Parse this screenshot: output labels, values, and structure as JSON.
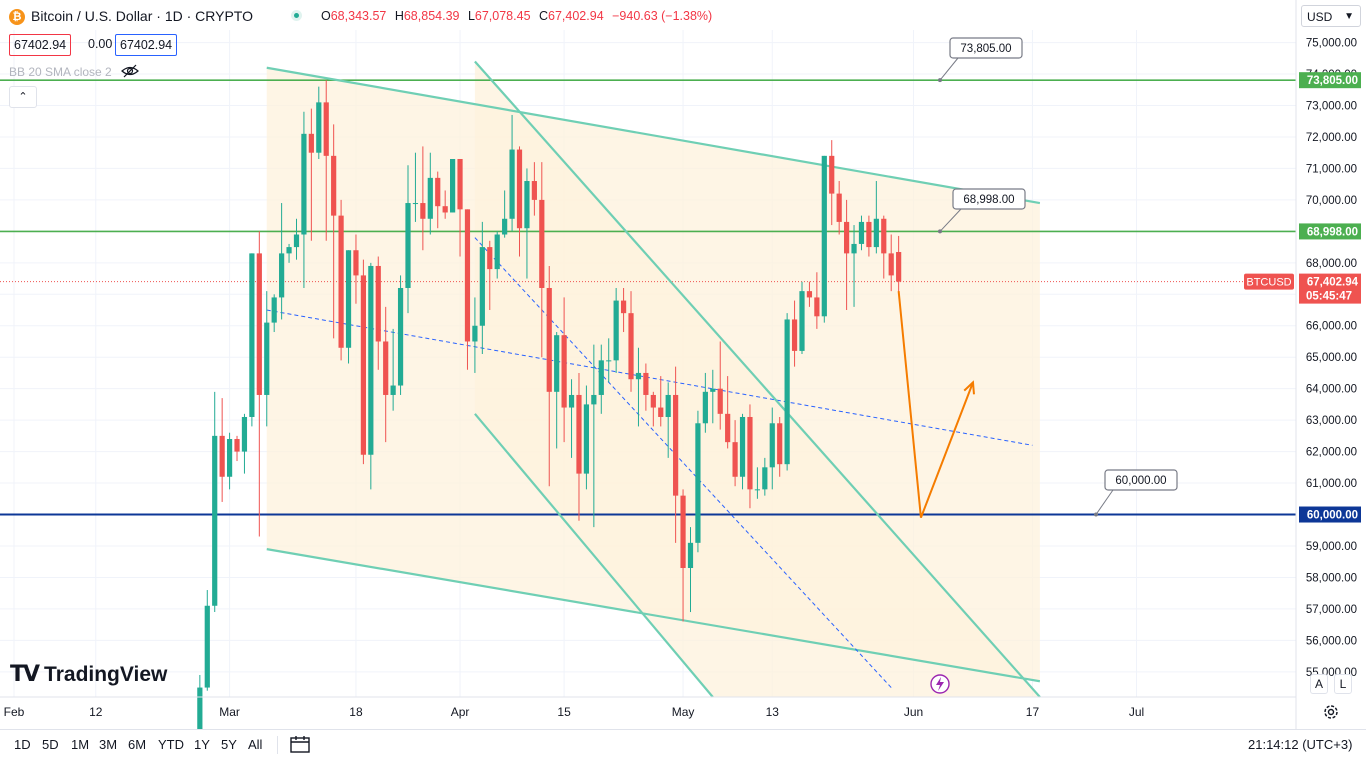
{
  "header": {
    "title": "Bitcoin / U.S. Dollar · 1D · CRYPTO",
    "logo_glyph": "₿",
    "ohlc": {
      "o_label": "O",
      "o_value": "68,343.57",
      "h_label": "H",
      "h_value": "68,854.39",
      "l_label": "L",
      "l_value": "67,078.45",
      "c_label": "C",
      "c_value": "67,402.94",
      "change": "−940.63 (−1.38%)"
    },
    "bid": "67402.94",
    "spread": "0.00",
    "ask": "67402.94",
    "indicator_label": "BB 20 SMA close 2",
    "collapse_glyph": "⌃",
    "currency": "USD"
  },
  "logo_text": "TradingView",
  "axis_buttons": {
    "auto": "A",
    "log": "L"
  },
  "range_buttons": [
    "1D",
    "5D",
    "1M",
    "3M",
    "6M",
    "YTD",
    "1Y",
    "5Y",
    "All"
  ],
  "clock": "21:14:12 (UTC+3)",
  "colors": {
    "up": "#22ab94",
    "down": "#ef5350",
    "channel": "#6fcfb4",
    "fill": "#fdf1dc",
    "hline_green": "#4caf50",
    "hline_blue": "#0d3797",
    "arrow": "#f57c00",
    "mid_line": "#2962ff",
    "marker": "#9c27b0"
  },
  "chart_data": {
    "type": "candlestick",
    "symbol": "BTCUSD",
    "ylim": [
      54200,
      75400
    ],
    "x_domain_days": [
      "2024-02-01",
      "2024-07-09"
    ],
    "y_ticks": [
      55000,
      56000,
      57000,
      58000,
      59000,
      60000,
      61000,
      62000,
      63000,
      64000,
      65000,
      66000,
      67000,
      68000,
      69000,
      70000,
      71000,
      72000,
      73000,
      74000,
      75000
    ],
    "y_tick_labels": [
      "55,000.00",
      "56,000.00",
      "57,000.00",
      "58,000.00",
      "59,000.00",
      "60,000.00",
      "61,000.00",
      "62,000.00",
      "63,000.00",
      "64,000.00",
      "65,000.00",
      "66,000.00",
      "67,000.00",
      "68,000.00",
      "69,000.00",
      "70,000.00",
      "71,000.00",
      "72,000.00",
      "73,000.00",
      "74,000.00",
      "75,000.00"
    ],
    "x_ticks": [
      {
        "date": "2024-02-01",
        "label": "Feb"
      },
      {
        "date": "2024-02-12",
        "label": "12"
      },
      {
        "date": "2024-03-01",
        "label": "Mar"
      },
      {
        "date": "2024-03-18",
        "label": "18"
      },
      {
        "date": "2024-04-01",
        "label": "Apr"
      },
      {
        "date": "2024-04-15",
        "label": "15"
      },
      {
        "date": "2024-05-01",
        "label": "May"
      },
      {
        "date": "2024-05-13",
        "label": "13"
      },
      {
        "date": "2024-06-01",
        "label": "Jun"
      },
      {
        "date": "2024-06-17",
        "label": "17"
      },
      {
        "date": "2024-07-01",
        "label": "Jul"
      }
    ],
    "candles": [
      {
        "date": "2024-02-26",
        "o": 51700,
        "h": 54900,
        "l": 50900,
        "c": 54500
      },
      {
        "date": "2024-02-27",
        "o": 54500,
        "h": 57600,
        "l": 54400,
        "c": 57100
      },
      {
        "date": "2024-02-28",
        "o": 57100,
        "h": 63900,
        "l": 56900,
        "c": 62500
      },
      {
        "date": "2024-02-29",
        "o": 62500,
        "h": 63700,
        "l": 60400,
        "c": 61200
      },
      {
        "date": "2024-03-01",
        "o": 61200,
        "h": 62600,
        "l": 60800,
        "c": 62400
      },
      {
        "date": "2024-03-02",
        "o": 62400,
        "h": 62500,
        "l": 61700,
        "c": 62000
      },
      {
        "date": "2024-03-03",
        "o": 62000,
        "h": 63200,
        "l": 61300,
        "c": 63100
      },
      {
        "date": "2024-03-04",
        "o": 63100,
        "h": 68300,
        "l": 62800,
        "c": 68300
      },
      {
        "date": "2024-03-05",
        "o": 68300,
        "h": 69000,
        "l": 59300,
        "c": 63800
      },
      {
        "date": "2024-03-06",
        "o": 63800,
        "h": 67100,
        "l": 62800,
        "c": 66100
      },
      {
        "date": "2024-03-07",
        "o": 66100,
        "h": 67000,
        "l": 65800,
        "c": 66900
      },
      {
        "date": "2024-03-08",
        "o": 66900,
        "h": 69900,
        "l": 66200,
        "c": 68300
      },
      {
        "date": "2024-03-09",
        "o": 68300,
        "h": 68600,
        "l": 68000,
        "c": 68500
      },
      {
        "date": "2024-03-10",
        "o": 68500,
        "h": 69400,
        "l": 68100,
        "c": 68900
      },
      {
        "date": "2024-03-11",
        "o": 68900,
        "h": 72800,
        "l": 67200,
        "c": 72100
      },
      {
        "date": "2024-03-12",
        "o": 72100,
        "h": 72900,
        "l": 68700,
        "c": 71500
      },
      {
        "date": "2024-03-13",
        "o": 71500,
        "h": 73600,
        "l": 71300,
        "c": 73100
      },
      {
        "date": "2024-03-14",
        "o": 73100,
        "h": 73800,
        "l": 68700,
        "c": 71400
      },
      {
        "date": "2024-03-15",
        "o": 71400,
        "h": 72400,
        "l": 65600,
        "c": 69500
      },
      {
        "date": "2024-03-16",
        "o": 69500,
        "h": 70000,
        "l": 64900,
        "c": 65300
      },
      {
        "date": "2024-03-17",
        "o": 65300,
        "h": 68400,
        "l": 64800,
        "c": 68400
      },
      {
        "date": "2024-03-18",
        "o": 68400,
        "h": 68900,
        "l": 66700,
        "c": 67600
      },
      {
        "date": "2024-03-19",
        "o": 67600,
        "h": 68100,
        "l": 61600,
        "c": 61900
      },
      {
        "date": "2024-03-20",
        "o": 61900,
        "h": 68000,
        "l": 60800,
        "c": 67900
      },
      {
        "date": "2024-03-21",
        "o": 67900,
        "h": 68200,
        "l": 64600,
        "c": 65500
      },
      {
        "date": "2024-03-22",
        "o": 65500,
        "h": 66600,
        "l": 62300,
        "c": 63800
      },
      {
        "date": "2024-03-23",
        "o": 63800,
        "h": 65900,
        "l": 63300,
        "c": 64100
      },
      {
        "date": "2024-03-24",
        "o": 64100,
        "h": 67600,
        "l": 63800,
        "c": 67200
      },
      {
        "date": "2024-03-25",
        "o": 67200,
        "h": 71100,
        "l": 66400,
        "c": 69900
      },
      {
        "date": "2024-03-26",
        "o": 69900,
        "h": 71500,
        "l": 69300,
        "c": 69900
      },
      {
        "date": "2024-03-27",
        "o": 69900,
        "h": 71700,
        "l": 68400,
        "c": 69400
      },
      {
        "date": "2024-03-28",
        "o": 69400,
        "h": 71500,
        "l": 68900,
        "c": 70700
      },
      {
        "date": "2024-03-29",
        "o": 70700,
        "h": 70900,
        "l": 69100,
        "c": 69800
      },
      {
        "date": "2024-03-30",
        "o": 69800,
        "h": 70300,
        "l": 69400,
        "c": 69600
      },
      {
        "date": "2024-03-31",
        "o": 69600,
        "h": 71300,
        "l": 69600,
        "c": 71300
      },
      {
        "date": "2024-04-01",
        "o": 71300,
        "h": 71300,
        "l": 68200,
        "c": 69700
      },
      {
        "date": "2024-04-02",
        "o": 69700,
        "h": 69700,
        "l": 64600,
        "c": 65500
      },
      {
        "date": "2024-04-03",
        "o": 65500,
        "h": 66900,
        "l": 64500,
        "c": 66000
      },
      {
        "date": "2024-04-04",
        "o": 66000,
        "h": 69300,
        "l": 65100,
        "c": 68500
      },
      {
        "date": "2024-04-05",
        "o": 68500,
        "h": 68700,
        "l": 66500,
        "c": 67800
      },
      {
        "date": "2024-04-06",
        "o": 67800,
        "h": 69000,
        "l": 67500,
        "c": 68900
      },
      {
        "date": "2024-04-07",
        "o": 68900,
        "h": 70300,
        "l": 68800,
        "c": 69400
      },
      {
        "date": "2024-04-08",
        "o": 69400,
        "h": 72700,
        "l": 69000,
        "c": 71600
      },
      {
        "date": "2024-04-09",
        "o": 71600,
        "h": 71700,
        "l": 68200,
        "c": 69100
      },
      {
        "date": "2024-04-10",
        "o": 69100,
        "h": 71000,
        "l": 67500,
        "c": 70600
      },
      {
        "date": "2024-04-11",
        "o": 70600,
        "h": 71200,
        "l": 69500,
        "c": 70000
      },
      {
        "date": "2024-04-12",
        "o": 70000,
        "h": 71200,
        "l": 65000,
        "c": 67200
      },
      {
        "date": "2024-04-13",
        "o": 67200,
        "h": 67900,
        "l": 60900,
        "c": 63900
      },
      {
        "date": "2024-04-14",
        "o": 63900,
        "h": 65800,
        "l": 62100,
        "c": 65700
      },
      {
        "date": "2024-04-15",
        "o": 65700,
        "h": 66900,
        "l": 62300,
        "c": 63400
      },
      {
        "date": "2024-04-16",
        "o": 63400,
        "h": 64300,
        "l": 61800,
        "c": 63800
      },
      {
        "date": "2024-04-17",
        "o": 63800,
        "h": 64500,
        "l": 59800,
        "c": 61300
      },
      {
        "date": "2024-04-18",
        "o": 61300,
        "h": 64100,
        "l": 60800,
        "c": 63500
      },
      {
        "date": "2024-04-19",
        "o": 63500,
        "h": 65400,
        "l": 59600,
        "c": 63800
      },
      {
        "date": "2024-04-20",
        "o": 63800,
        "h": 65400,
        "l": 63200,
        "c": 64900
      },
      {
        "date": "2024-04-21",
        "o": 64900,
        "h": 65600,
        "l": 64200,
        "c": 64900
      },
      {
        "date": "2024-04-22",
        "o": 64900,
        "h": 67200,
        "l": 64500,
        "c": 66800
      },
      {
        "date": "2024-04-23",
        "o": 66800,
        "h": 67200,
        "l": 65800,
        "c": 66400
      },
      {
        "date": "2024-04-24",
        "o": 66400,
        "h": 67100,
        "l": 63900,
        "c": 64300
      },
      {
        "date": "2024-04-25",
        "o": 64300,
        "h": 65300,
        "l": 62800,
        "c": 64500
      },
      {
        "date": "2024-04-26",
        "o": 64500,
        "h": 64800,
        "l": 63300,
        "c": 63800
      },
      {
        "date": "2024-04-27",
        "o": 63800,
        "h": 63900,
        "l": 62800,
        "c": 63400
      },
      {
        "date": "2024-04-28",
        "o": 63400,
        "h": 64400,
        "l": 62800,
        "c": 63100
      },
      {
        "date": "2024-04-29",
        "o": 63100,
        "h": 64200,
        "l": 61800,
        "c": 63800
      },
      {
        "date": "2024-04-30",
        "o": 63800,
        "h": 64700,
        "l": 59100,
        "c": 60600
      },
      {
        "date": "2024-05-01",
        "o": 60600,
        "h": 60800,
        "l": 56600,
        "c": 58300
      },
      {
        "date": "2024-05-02",
        "o": 58300,
        "h": 59600,
        "l": 56900,
        "c": 59100
      },
      {
        "date": "2024-05-03",
        "o": 59100,
        "h": 63300,
        "l": 58800,
        "c": 62900
      },
      {
        "date": "2024-05-04",
        "o": 62900,
        "h": 64500,
        "l": 62600,
        "c": 63900
      },
      {
        "date": "2024-05-05",
        "o": 63900,
        "h": 64600,
        "l": 62900,
        "c": 64000
      },
      {
        "date": "2024-05-06",
        "o": 64000,
        "h": 65500,
        "l": 62700,
        "c": 63200
      },
      {
        "date": "2024-05-07",
        "o": 63200,
        "h": 64400,
        "l": 62100,
        "c": 62300
      },
      {
        "date": "2024-05-08",
        "o": 62300,
        "h": 63000,
        "l": 60900,
        "c": 61200
      },
      {
        "date": "2024-05-09",
        "o": 61200,
        "h": 63200,
        "l": 60800,
        "c": 63100
      },
      {
        "date": "2024-05-10",
        "o": 63100,
        "h": 63500,
        "l": 60200,
        "c": 60800
      },
      {
        "date": "2024-05-11",
        "o": 60800,
        "h": 61500,
        "l": 60500,
        "c": 60800
      },
      {
        "date": "2024-05-12",
        "o": 60800,
        "h": 61800,
        "l": 60600,
        "c": 61500
      },
      {
        "date": "2024-05-13",
        "o": 61500,
        "h": 63400,
        "l": 60800,
        "c": 62900
      },
      {
        "date": "2024-05-14",
        "o": 62900,
        "h": 63100,
        "l": 61200,
        "c": 61600
      },
      {
        "date": "2024-05-15",
        "o": 61600,
        "h": 66400,
        "l": 61400,
        "c": 66200
      },
      {
        "date": "2024-05-16",
        "o": 66200,
        "h": 66800,
        "l": 64700,
        "c": 65200
      },
      {
        "date": "2024-05-17",
        "o": 65200,
        "h": 67400,
        "l": 65100,
        "c": 67100
      },
      {
        "date": "2024-05-18",
        "o": 67100,
        "h": 67400,
        "l": 66600,
        "c": 66900
      },
      {
        "date": "2024-05-19",
        "o": 66900,
        "h": 67700,
        "l": 65900,
        "c": 66300
      },
      {
        "date": "2024-05-20",
        "o": 66300,
        "h": 71400,
        "l": 66100,
        "c": 71400
      },
      {
        "date": "2024-05-21",
        "o": 71400,
        "h": 71900,
        "l": 69200,
        "c": 70200
      },
      {
        "date": "2024-05-22",
        "o": 70200,
        "h": 70600,
        "l": 68900,
        "c": 69300
      },
      {
        "date": "2024-05-23",
        "o": 69300,
        "h": 70000,
        "l": 66500,
        "c": 68300
      },
      {
        "date": "2024-05-24",
        "o": 68300,
        "h": 69200,
        "l": 66600,
        "c": 68600
      },
      {
        "date": "2024-05-25",
        "o": 68600,
        "h": 69500,
        "l": 68400,
        "c": 69300
      },
      {
        "date": "2024-05-26",
        "o": 69300,
        "h": 69500,
        "l": 68200,
        "c": 68500
      },
      {
        "date": "2024-05-27",
        "o": 68500,
        "h": 70600,
        "l": 68300,
        "c": 69400
      },
      {
        "date": "2024-05-28",
        "o": 69400,
        "h": 69500,
        "l": 67500,
        "c": 68300
      },
      {
        "date": "2024-05-29",
        "o": 68300,
        "h": 68900,
        "l": 67100,
        "c": 67600
      },
      {
        "date": "2024-05-30",
        "o": 68343.57,
        "h": 68854.39,
        "l": 67078.45,
        "c": 67402.94
      }
    ],
    "horizontal_lines": [
      {
        "price": 73805,
        "label": "73,805.00",
        "color": "#4caf50"
      },
      {
        "price": 68998,
        "label": "68,998.00",
        "color": "#4caf50"
      },
      {
        "price": 60000,
        "label": "60,000.00",
        "color": "#0d3797"
      }
    ],
    "callouts": [
      {
        "text": "73,805.00"
      },
      {
        "text": "68,998.00"
      },
      {
        "text": "60,000.00"
      }
    ],
    "last_price": {
      "symbol": "BTCUSD",
      "price": "67,402.94",
      "countdown": "05:45:47"
    },
    "channels": [
      {
        "name": "channel-a",
        "upper": [
          [
            "2024-03-06",
            74200
          ],
          [
            "2024-06-18",
            69900
          ]
        ],
        "lower": [
          [
            "2024-03-06",
            58900
          ],
          [
            "2024-06-18",
            54700
          ]
        ],
        "mid": [
          [
            "2024-03-06",
            66500
          ],
          [
            "2024-06-17",
            62200
          ]
        ]
      },
      {
        "name": "channel-b",
        "upper": [
          [
            "2024-04-03",
            74400
          ],
          [
            "2024-06-18",
            54200
          ]
        ],
        "lower": [
          [
            "2024-04-03",
            63200
          ],
          [
            "2024-05-05",
            54200
          ]
        ],
        "mid": [
          [
            "2024-04-03",
            68800
          ],
          [
            "2024-05-29",
            54500
          ]
        ]
      }
    ],
    "forecast_path": [
      [
        "2024-05-30",
        67100
      ],
      [
        "2024-06-02",
        59900
      ],
      [
        "2024-06-09",
        64200
      ]
    ]
  }
}
